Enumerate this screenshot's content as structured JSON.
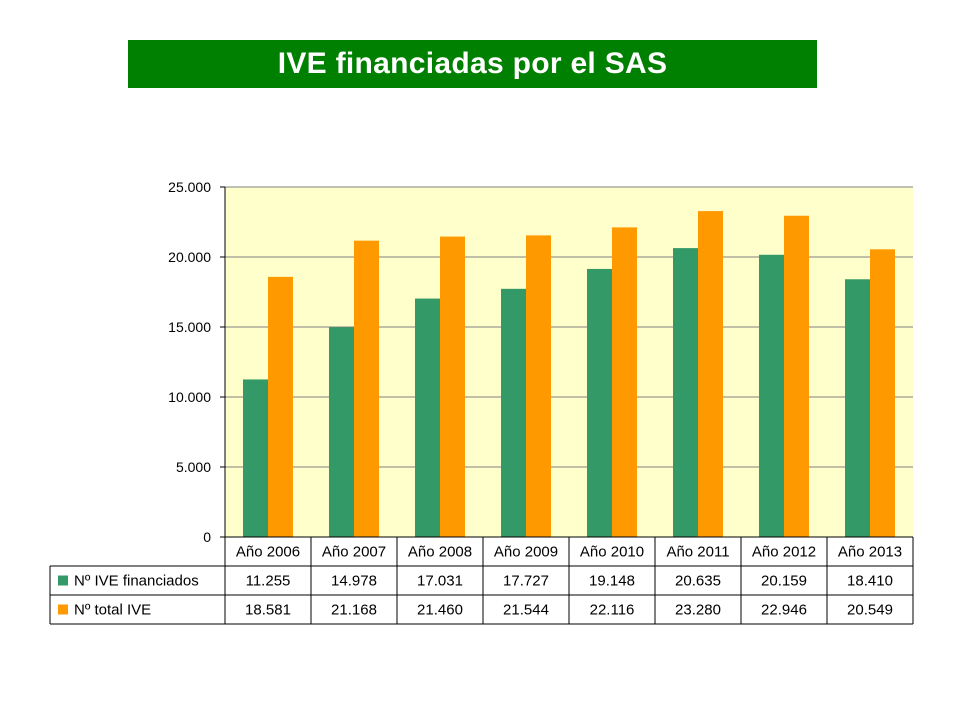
{
  "title": "IVE financiadas por el SAS",
  "colors": {
    "title_bg": "#008000",
    "title_text": "#ffffff",
    "plot_bg": "#ffffcc",
    "series_1": "#339966",
    "series_2": "#ff9900"
  },
  "chart_data": {
    "type": "bar",
    "title": "",
    "xlabel": "",
    "ylabel": "",
    "ylim": [
      0,
      25000
    ],
    "yticks": [
      0,
      5000,
      10000,
      15000,
      20000,
      25000
    ],
    "ytick_labels": [
      "0",
      "5.000",
      "10.000",
      "15.000",
      "20.000",
      "25.000"
    ],
    "grid": true,
    "legend": "data-table",
    "categories": [
      "Año 2006",
      "Año 2007",
      "Año 2008",
      "Año 2009",
      "Año 2010",
      "Año 2011",
      "Año 2012",
      "Año 2013"
    ],
    "series": [
      {
        "name": "Nº IVE financiados",
        "color": "#339966",
        "values": [
          11255,
          14978,
          17031,
          17727,
          19148,
          20635,
          20159,
          18410
        ],
        "labels": [
          "11.255",
          "14.978",
          "17.031",
          "17.727",
          "19.148",
          "20.635",
          "20.159",
          "18.410"
        ]
      },
      {
        "name": "Nº total IVE",
        "color": "#ff9900",
        "values": [
          18581,
          21168,
          21460,
          21544,
          22116,
          23280,
          22946,
          20549
        ],
        "labels": [
          "18.581",
          "21.168",
          "21.460",
          "21.544",
          "22.116",
          "23.280",
          "22.946",
          "20.549"
        ]
      }
    ]
  }
}
